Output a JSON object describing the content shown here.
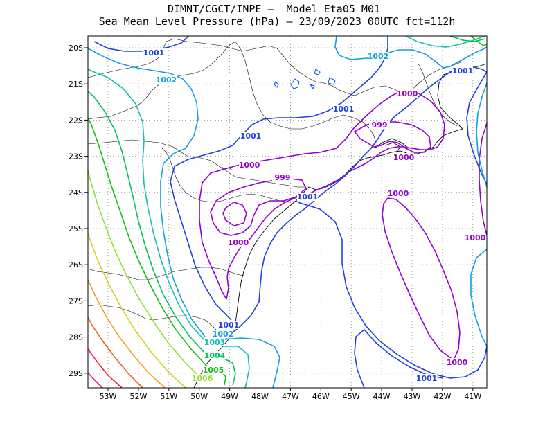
{
  "title_line1": "DIMNT/CGCT/INPE –  Model Eta05_M01_",
  "title_line2": "Sea Mean Level Pressure (hPa) – 23/09/2023 00UTC fct=112h",
  "lat_labels": [
    "20S",
    "21S",
    "22S",
    "23S",
    "24S",
    "25S",
    "26S",
    "27S",
    "28S",
    "29S"
  ],
  "lon_labels": [
    "53W",
    "52W",
    "51W",
    "50W",
    "49W",
    "48W",
    "47W",
    "46W",
    "45W",
    "44W",
    "43W",
    "42W",
    "41W"
  ],
  "colors": {
    "c999": "#9400d3",
    "c1000": "#9400d3",
    "c1001": "#2040e0",
    "c1002": "#10a0e0",
    "c1003": "#10c0b0",
    "c1004": "#00c060",
    "c1005": "#10c010",
    "c1006": "#90e030",
    "c1007": "#d0d020",
    "c1008": "#f0a020",
    "c1009": "#f06020",
    "c1010": "#f02040",
    "c1011": "#e01090"
  },
  "contour_labels": [
    {
      "text": "1001",
      "color": "#2040e0"
    },
    {
      "text": "1002",
      "color": "#10a0e0"
    },
    {
      "text": "1002",
      "color": "#10a0e0"
    },
    {
      "text": "1001",
      "color": "#2040e0"
    },
    {
      "text": "1001",
      "color": "#2040e0"
    },
    {
      "text": "1001",
      "color": "#2040e0"
    },
    {
      "text": "1000",
      "color": "#9400d3"
    },
    {
      "text": "999",
      "color": "#9400d3"
    },
    {
      "text": "1000",
      "color": "#9400d3"
    },
    {
      "text": "999",
      "color": "#9400d3"
    },
    {
      "text": "1001",
      "color": "#2040e0"
    },
    {
      "text": "1000",
      "color": "#9400d3"
    },
    {
      "text": "1000",
      "color": "#9400d3"
    },
    {
      "text": "1000",
      "color": "#9400d3"
    },
    {
      "text": "1000",
      "color": "#9400d3"
    },
    {
      "text": "1001",
      "color": "#2040e0"
    },
    {
      "text": "1002",
      "color": "#10a0e0"
    },
    {
      "text": "1003",
      "color": "#10c0b0"
    },
    {
      "text": "1004",
      "color": "#00c060"
    },
    {
      "text": "1005",
      "color": "#10c010"
    },
    {
      "text": "1006",
      "color": "#90e030"
    },
    {
      "text": "1000",
      "color": "#9400d3"
    },
    {
      "text": "1001",
      "color": "#2040e0"
    }
  ]
}
